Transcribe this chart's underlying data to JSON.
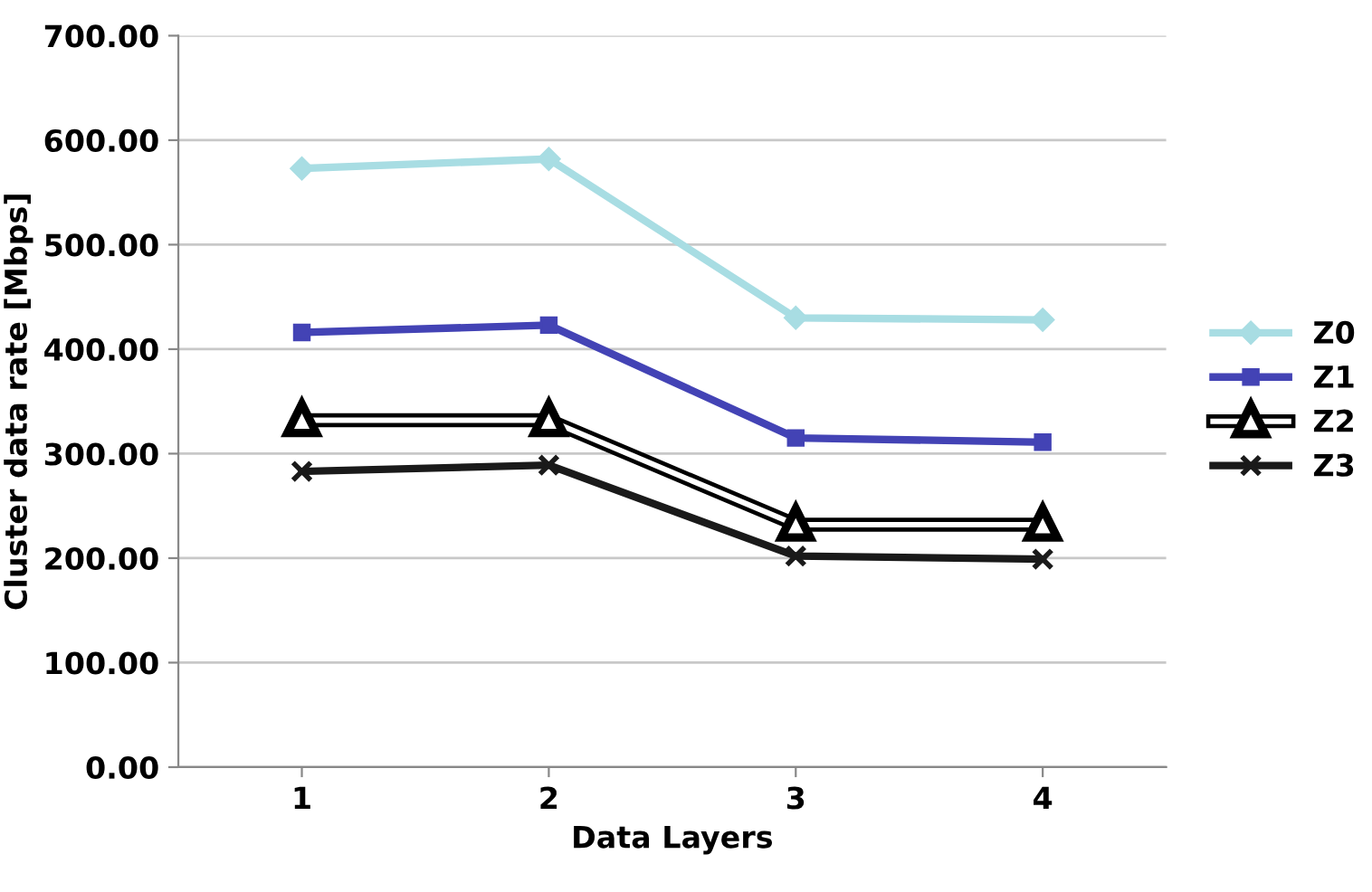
{
  "chart_data": {
    "type": "line",
    "xlabel": "Data Layers",
    "ylabel": "Cluster data rate [Mbps]",
    "x": [
      1,
      2,
      3,
      4
    ],
    "xlim": [
      0.5,
      4.5
    ],
    "xticks": [
      1,
      2,
      3,
      4
    ],
    "ylim": [
      0,
      700
    ],
    "yticks": [
      {
        "value": 0,
        "label": "0.00"
      },
      {
        "value": 100,
        "label": "100.00"
      },
      {
        "value": 200,
        "label": "200.00"
      },
      {
        "value": 300,
        "label": "300.00"
      },
      {
        "value": 400,
        "label": "400.00"
      },
      {
        "value": 500,
        "label": "500.00"
      },
      {
        "value": 600,
        "label": "600.00"
      },
      {
        "value": 700,
        "label": "700.00"
      }
    ],
    "grid": "y",
    "legend": "right",
    "series": [
      {
        "name": "Z0",
        "color": "#a8dde3",
        "marker": "diamond",
        "values": [
          573,
          582,
          430,
          428
        ]
      },
      {
        "name": "Z1",
        "color": "#4343b5",
        "marker": "square",
        "values": [
          416,
          423,
          315,
          311
        ]
      },
      {
        "name": "Z2",
        "color": "#000000",
        "marker": "triangle",
        "values": [
          332,
          332,
          232,
          232
        ]
      },
      {
        "name": "Z3",
        "color": "#1a1a1a",
        "marker": "cross",
        "values": [
          283,
          289,
          202,
          199
        ]
      }
    ]
  }
}
